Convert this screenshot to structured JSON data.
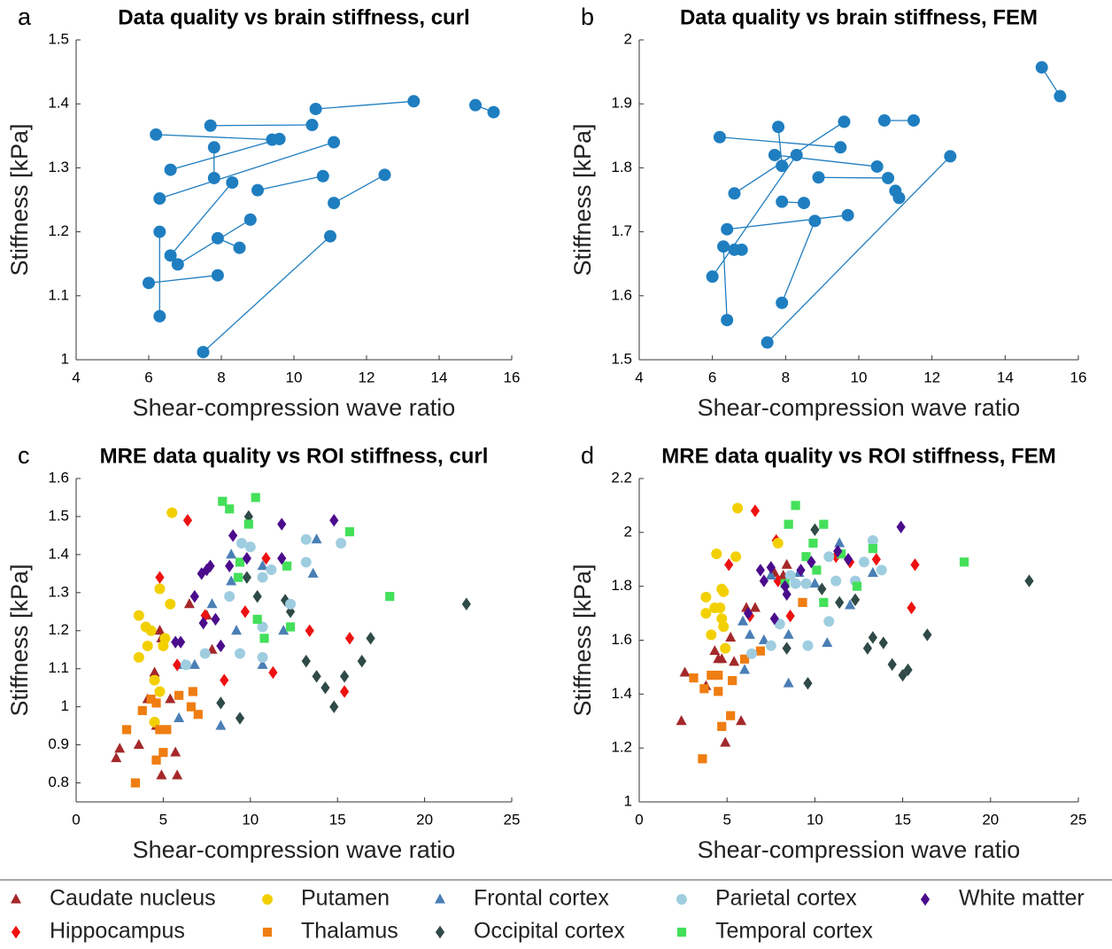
{
  "chart_data": [
    {
      "type": "line",
      "panel_label": "a",
      "title": "Data quality vs brain stiffness, curl",
      "xlabel": "Shear-compression wave ratio",
      "ylabel": "Stiffness [kPa]",
      "color": "#1f7ec0",
      "marker": "circle",
      "xlim": [
        4,
        16
      ],
      "xticks": [
        4,
        6,
        8,
        10,
        12,
        14,
        16
      ],
      "ylim": [
        1,
        1.5
      ],
      "yticks": [
        1,
        1.1,
        1.2,
        1.3,
        1.4,
        1.5
      ],
      "x": [
        10.6,
        13.3,
        null,
        15.0,
        15.5,
        null,
        7.7,
        10.5,
        null,
        6.2,
        9.4,
        null,
        6.6,
        9.6,
        null,
        7.8,
        7.8,
        null,
        6.3,
        11.1,
        null,
        8.3,
        6.6,
        null,
        9.0,
        10.8,
        null,
        11.1,
        12.5,
        null,
        6.3,
        6.3,
        null,
        6.8,
        8.8,
        null,
        7.9,
        8.5,
        null,
        6.0,
        7.9,
        null,
        7.5,
        11.0
      ],
      "values": [
        1.392,
        1.404,
        null,
        1.398,
        1.387,
        null,
        1.366,
        1.367,
        null,
        1.352,
        1.344,
        null,
        1.297,
        1.345,
        null,
        1.332,
        1.284,
        null,
        1.252,
        1.34,
        null,
        1.277,
        1.163,
        null,
        1.265,
        1.287,
        null,
        1.245,
        1.289,
        null,
        1.2,
        1.068,
        null,
        1.149,
        1.219,
        null,
        1.19,
        1.175,
        null,
        1.12,
        1.132,
        null,
        1.012,
        1.193
      ]
    },
    {
      "type": "line",
      "panel_label": "b",
      "title": "Data quality vs brain stiffness, FEM",
      "xlabel": "Shear-compression wave ratio",
      "ylabel": "Stiffness [kPa]",
      "color": "#1f7ec0",
      "marker": "circle",
      "xlim": [
        4,
        16
      ],
      "xticks": [
        4,
        6,
        8,
        10,
        12,
        14,
        16
      ],
      "ylim": [
        1.5,
        2
      ],
      "yticks": [
        1.5,
        1.6,
        1.7,
        1.8,
        1.9,
        2
      ],
      "x": [
        15.0,
        15.5,
        null,
        6.2,
        9.5,
        null,
        7.8,
        7.9,
        null,
        10.7,
        11.5,
        null,
        7.7,
        10.5,
        null,
        6.6,
        9.6,
        null,
        8.9,
        10.8,
        null,
        11.0,
        11.1,
        null,
        7.9,
        8.5,
        null,
        6.4,
        9.7,
        null,
        6.3,
        6.4,
        null,
        6.6,
        6.8,
        null,
        6.0,
        8.3,
        null,
        7.9,
        8.8,
        null,
        7.5,
        12.5
      ],
      "values": [
        1.957,
        1.912,
        null,
        1.848,
        1.832,
        null,
        1.864,
        1.803,
        null,
        1.874,
        1.874,
        null,
        1.82,
        1.802,
        null,
        1.76,
        1.872,
        null,
        1.785,
        1.784,
        null,
        1.764,
        1.753,
        null,
        1.747,
        1.745,
        null,
        1.704,
        1.726,
        null,
        1.677,
        1.562,
        null,
        1.672,
        1.672,
        null,
        1.63,
        1.82,
        null,
        1.589,
        1.717,
        null,
        1.527,
        1.818
      ]
    },
    {
      "type": "scatter",
      "panel_label": "c",
      "title": "MRE data quality vs ROI stiffness, curl",
      "xlabel": "Shear-compression wave ratio",
      "ylabel": "Stiffness [kPa]",
      "xlim": [
        0,
        25
      ],
      "xticks": [
        0,
        5,
        10,
        15,
        20,
        25
      ],
      "ylim": [
        0.75,
        1.6
      ],
      "yticks": [
        0.8,
        0.9,
        1,
        1.1,
        1.2,
        1.3,
        1.4,
        1.5,
        1.6
      ],
      "series": [
        {
          "name": "Caudate nucleus",
          "color": "#a4282a",
          "marker": "triangle",
          "x": [
            2.3,
            2.5,
            3.6,
            4.1,
            4.5,
            4.9,
            4.8,
            4.9,
            5.4,
            5.8,
            5.7,
            4.6,
            6.5,
            7.5,
            7.8
          ],
          "values": [
            0.865,
            0.89,
            0.9,
            1.02,
            1.09,
            0.82,
            1.2,
            1.18,
            1.02,
            0.82,
            0.88,
            0.95,
            1.27,
            1.24,
            1.15
          ]
        },
        {
          "name": "Hippocampus",
          "color": "#ee1111",
          "marker": "diamond",
          "x": [
            4.8,
            6.4,
            5.8,
            9.7,
            8.5,
            10.9,
            11.3,
            13.4,
            15.7,
            15.4,
            7.4
          ],
          "values": [
            1.34,
            1.49,
            1.11,
            1.25,
            1.07,
            1.39,
            1.09,
            1.2,
            1.18,
            1.04,
            1.24
          ]
        },
        {
          "name": "Putamen",
          "color": "#f2d000",
          "marker": "circle",
          "x": [
            5.5,
            3.6,
            3.6,
            4.3,
            4.1,
            4.8,
            4.8,
            4.5,
            5.4,
            5.0,
            4.5,
            5.1,
            4.0
          ],
          "values": [
            1.51,
            1.24,
            1.13,
            1.2,
            1.16,
            1.31,
            1.04,
            1.07,
            1.27,
            1.16,
            0.96,
            1.18,
            1.21
          ]
        },
        {
          "name": "Thalamus",
          "color": "#ef7d12",
          "marker": "square",
          "x": [
            2.9,
            3.4,
            3.8,
            4.3,
            4.6,
            5.0,
            5.2,
            4.8,
            5.9,
            6.6,
            7.0,
            6.7,
            4.6
          ],
          "values": [
            0.94,
            0.8,
            0.99,
            1.02,
            0.86,
            0.88,
            0.94,
            0.94,
            1.03,
            1.0,
            0.98,
            1.04,
            1.01
          ]
        },
        {
          "name": "Frontal cortex",
          "color": "#4a7fb5",
          "marker": "triangle",
          "x": [
            6.2,
            6.8,
            5.9,
            7.8,
            8.3,
            8.9,
            8.9,
            9.2,
            10.7,
            10.7,
            11.9,
            13.6,
            13.8
          ],
          "values": [
            1.11,
            1.11,
            0.97,
            1.27,
            0.95,
            1.4,
            1.33,
            1.2,
            1.37,
            1.11,
            1.2,
            1.35,
            1.44
          ]
        },
        {
          "name": "Occipital cortex",
          "color": "#2f4a47",
          "marker": "diamond",
          "x": [
            8.3,
            9.4,
            9.8,
            9.9,
            10.4,
            12.0,
            12.3,
            13.2,
            13.8,
            14.3,
            14.8,
            15.4,
            16.4,
            16.9,
            22.4
          ],
          "values": [
            1.01,
            0.97,
            1.34,
            1.5,
            1.29,
            1.28,
            1.25,
            1.12,
            1.08,
            1.05,
            1.0,
            1.08,
            1.12,
            1.18,
            1.27
          ]
        },
        {
          "name": "Parietal cortex",
          "color": "#9fcde0",
          "marker": "circle",
          "x": [
            6.3,
            7.4,
            9.5,
            10.0,
            9.4,
            10.7,
            10.7,
            10.7,
            11.2,
            12.3,
            13.2,
            13.2,
            15.2,
            8.8
          ],
          "values": [
            1.11,
            1.14,
            1.43,
            1.42,
            1.14,
            1.34,
            1.13,
            1.21,
            1.36,
            1.27,
            1.44,
            1.38,
            1.43,
            1.29
          ]
        },
        {
          "name": "Temporal cortex",
          "color": "#44e05a",
          "marker": "square",
          "x": [
            8.4,
            8.8,
            10.3,
            9.4,
            9.3,
            9.9,
            10.4,
            10.8,
            12.1,
            12.3,
            15.7,
            18.0
          ],
          "values": [
            1.54,
            1.52,
            1.55,
            1.38,
            1.34,
            1.48,
            1.23,
            1.18,
            1.37,
            1.21,
            1.46,
            1.29
          ]
        },
        {
          "name": "White matter",
          "color": "#4b0c8c",
          "marker": "diamond",
          "x": [
            7.2,
            7.5,
            7.7,
            5.7,
            6.0,
            6.8,
            7.3,
            8.0,
            8.3,
            9.0,
            8.8,
            9.8,
            11.8,
            11.8,
            14.8
          ],
          "values": [
            1.35,
            1.36,
            1.37,
            1.17,
            1.17,
            1.29,
            1.22,
            1.23,
            1.16,
            1.45,
            1.37,
            1.39,
            1.39,
            1.48,
            1.49
          ]
        }
      ]
    },
    {
      "type": "scatter",
      "panel_label": "d",
      "title": "MRE data quality vs ROI stiffness, FEM",
      "xlabel": "Shear-compression wave ratio",
      "ylabel": "Stiffness [kPa]",
      "xlim": [
        0,
        25
      ],
      "xticks": [
        0,
        5,
        10,
        15,
        20,
        25
      ],
      "ylim": [
        1,
        2.2
      ],
      "yticks": [
        1,
        1.2,
        1.4,
        1.6,
        1.8,
        2,
        2.2
      ],
      "series": [
        {
          "name": "Caudate nucleus",
          "color": "#a4282a",
          "marker": "triangle",
          "x": [
            2.4,
            2.6,
            3.8,
            4.3,
            4.5,
            4.7,
            4.9,
            5.2,
            5.4,
            5.8,
            6.1,
            6.6,
            7.7,
            8.4,
            8.2
          ],
          "values": [
            1.3,
            1.48,
            1.43,
            1.56,
            1.53,
            1.53,
            1.22,
            1.61,
            1.52,
            1.3,
            1.72,
            1.72,
            1.85,
            1.88,
            1.84
          ]
        },
        {
          "name": "Hippocampus",
          "color": "#ee1111",
          "marker": "diamond",
          "x": [
            5.1,
            6.6,
            7.8,
            6.3,
            7.9,
            8.6,
            11.2,
            12.0,
            13.5,
            15.7,
            15.5
          ],
          "values": [
            1.88,
            2.08,
            1.97,
            1.69,
            1.82,
            1.69,
            1.91,
            1.89,
            1.9,
            1.88,
            1.72
          ]
        },
        {
          "name": "Putamen",
          "color": "#f2d000",
          "marker": "circle",
          "x": [
            5.6,
            4.4,
            5.5,
            3.8,
            3.8,
            4.3,
            4.7,
            4.8,
            4.1,
            4.7,
            4.8,
            4.9,
            7.9,
            4.6
          ],
          "values": [
            2.09,
            1.92,
            1.91,
            1.76,
            1.7,
            1.72,
            1.79,
            1.78,
            1.62,
            1.68,
            1.65,
            1.57,
            1.96,
            1.72
          ]
        },
        {
          "name": "Thalamus",
          "color": "#ef7d12",
          "marker": "square",
          "x": [
            3.1,
            3.7,
            3.6,
            4.1,
            4.5,
            4.5,
            4.7,
            5.2,
            5.3,
            6.0,
            6.9,
            9.3
          ],
          "values": [
            1.46,
            1.42,
            1.16,
            1.47,
            1.47,
            1.41,
            1.28,
            1.32,
            1.45,
            1.53,
            1.56,
            1.74
          ]
        },
        {
          "name": "Frontal cortex",
          "color": "#4a7fb5",
          "marker": "triangle",
          "x": [
            5.9,
            6.3,
            6.0,
            7.1,
            7.5,
            8.5,
            8.5,
            9.1,
            10.0,
            10.7,
            11.4,
            12.0,
            13.3
          ],
          "values": [
            1.67,
            1.62,
            1.49,
            1.6,
            1.84,
            1.62,
            1.44,
            1.85,
            1.81,
            1.59,
            1.96,
            1.73,
            1.85
          ]
        },
        {
          "name": "Occipital cortex",
          "color": "#2f4a47",
          "marker": "diamond",
          "x": [
            8.4,
            9.6,
            10.0,
            10.4,
            11.4,
            12.3,
            13.0,
            13.3,
            13.9,
            14.4,
            15.0,
            15.3,
            16.4,
            22.2
          ],
          "values": [
            1.57,
            1.44,
            2.01,
            1.79,
            1.74,
            1.75,
            1.57,
            1.61,
            1.59,
            1.51,
            1.47,
            1.49,
            1.62,
            1.82
          ]
        },
        {
          "name": "Parietal cortex",
          "color": "#9fcde0",
          "marker": "circle",
          "x": [
            6.4,
            7.5,
            8.0,
            8.6,
            8.9,
            9.5,
            9.6,
            10.8,
            10.8,
            11.2,
            12.3,
            12.8,
            13.3,
            13.8
          ],
          "values": [
            1.55,
            1.58,
            1.66,
            1.84,
            1.81,
            1.81,
            1.58,
            1.91,
            1.67,
            1.82,
            1.82,
            1.89,
            1.97,
            1.86
          ]
        },
        {
          "name": "Temporal cortex",
          "color": "#44e05a",
          "marker": "square",
          "x": [
            8.9,
            8.5,
            10.5,
            9.9,
            9.5,
            8.3,
            10.5,
            10.1,
            11.5,
            12.4,
            13.3,
            18.5
          ],
          "values": [
            2.1,
            2.03,
            2.03,
            1.96,
            1.91,
            1.81,
            1.74,
            1.86,
            1.92,
            1.8,
            1.94,
            1.89
          ]
        },
        {
          "name": "White matter",
          "color": "#4b0c8c",
          "marker": "diamond",
          "x": [
            6.2,
            6.9,
            7.5,
            7.1,
            7.7,
            8.3,
            8.4,
            9.2,
            9.8,
            11.3,
            11.9,
            14.9
          ],
          "values": [
            1.7,
            1.86,
            1.87,
            1.82,
            1.68,
            1.8,
            1.77,
            1.86,
            1.89,
            1.93,
            1.9,
            2.02
          ]
        }
      ]
    }
  ]
}
